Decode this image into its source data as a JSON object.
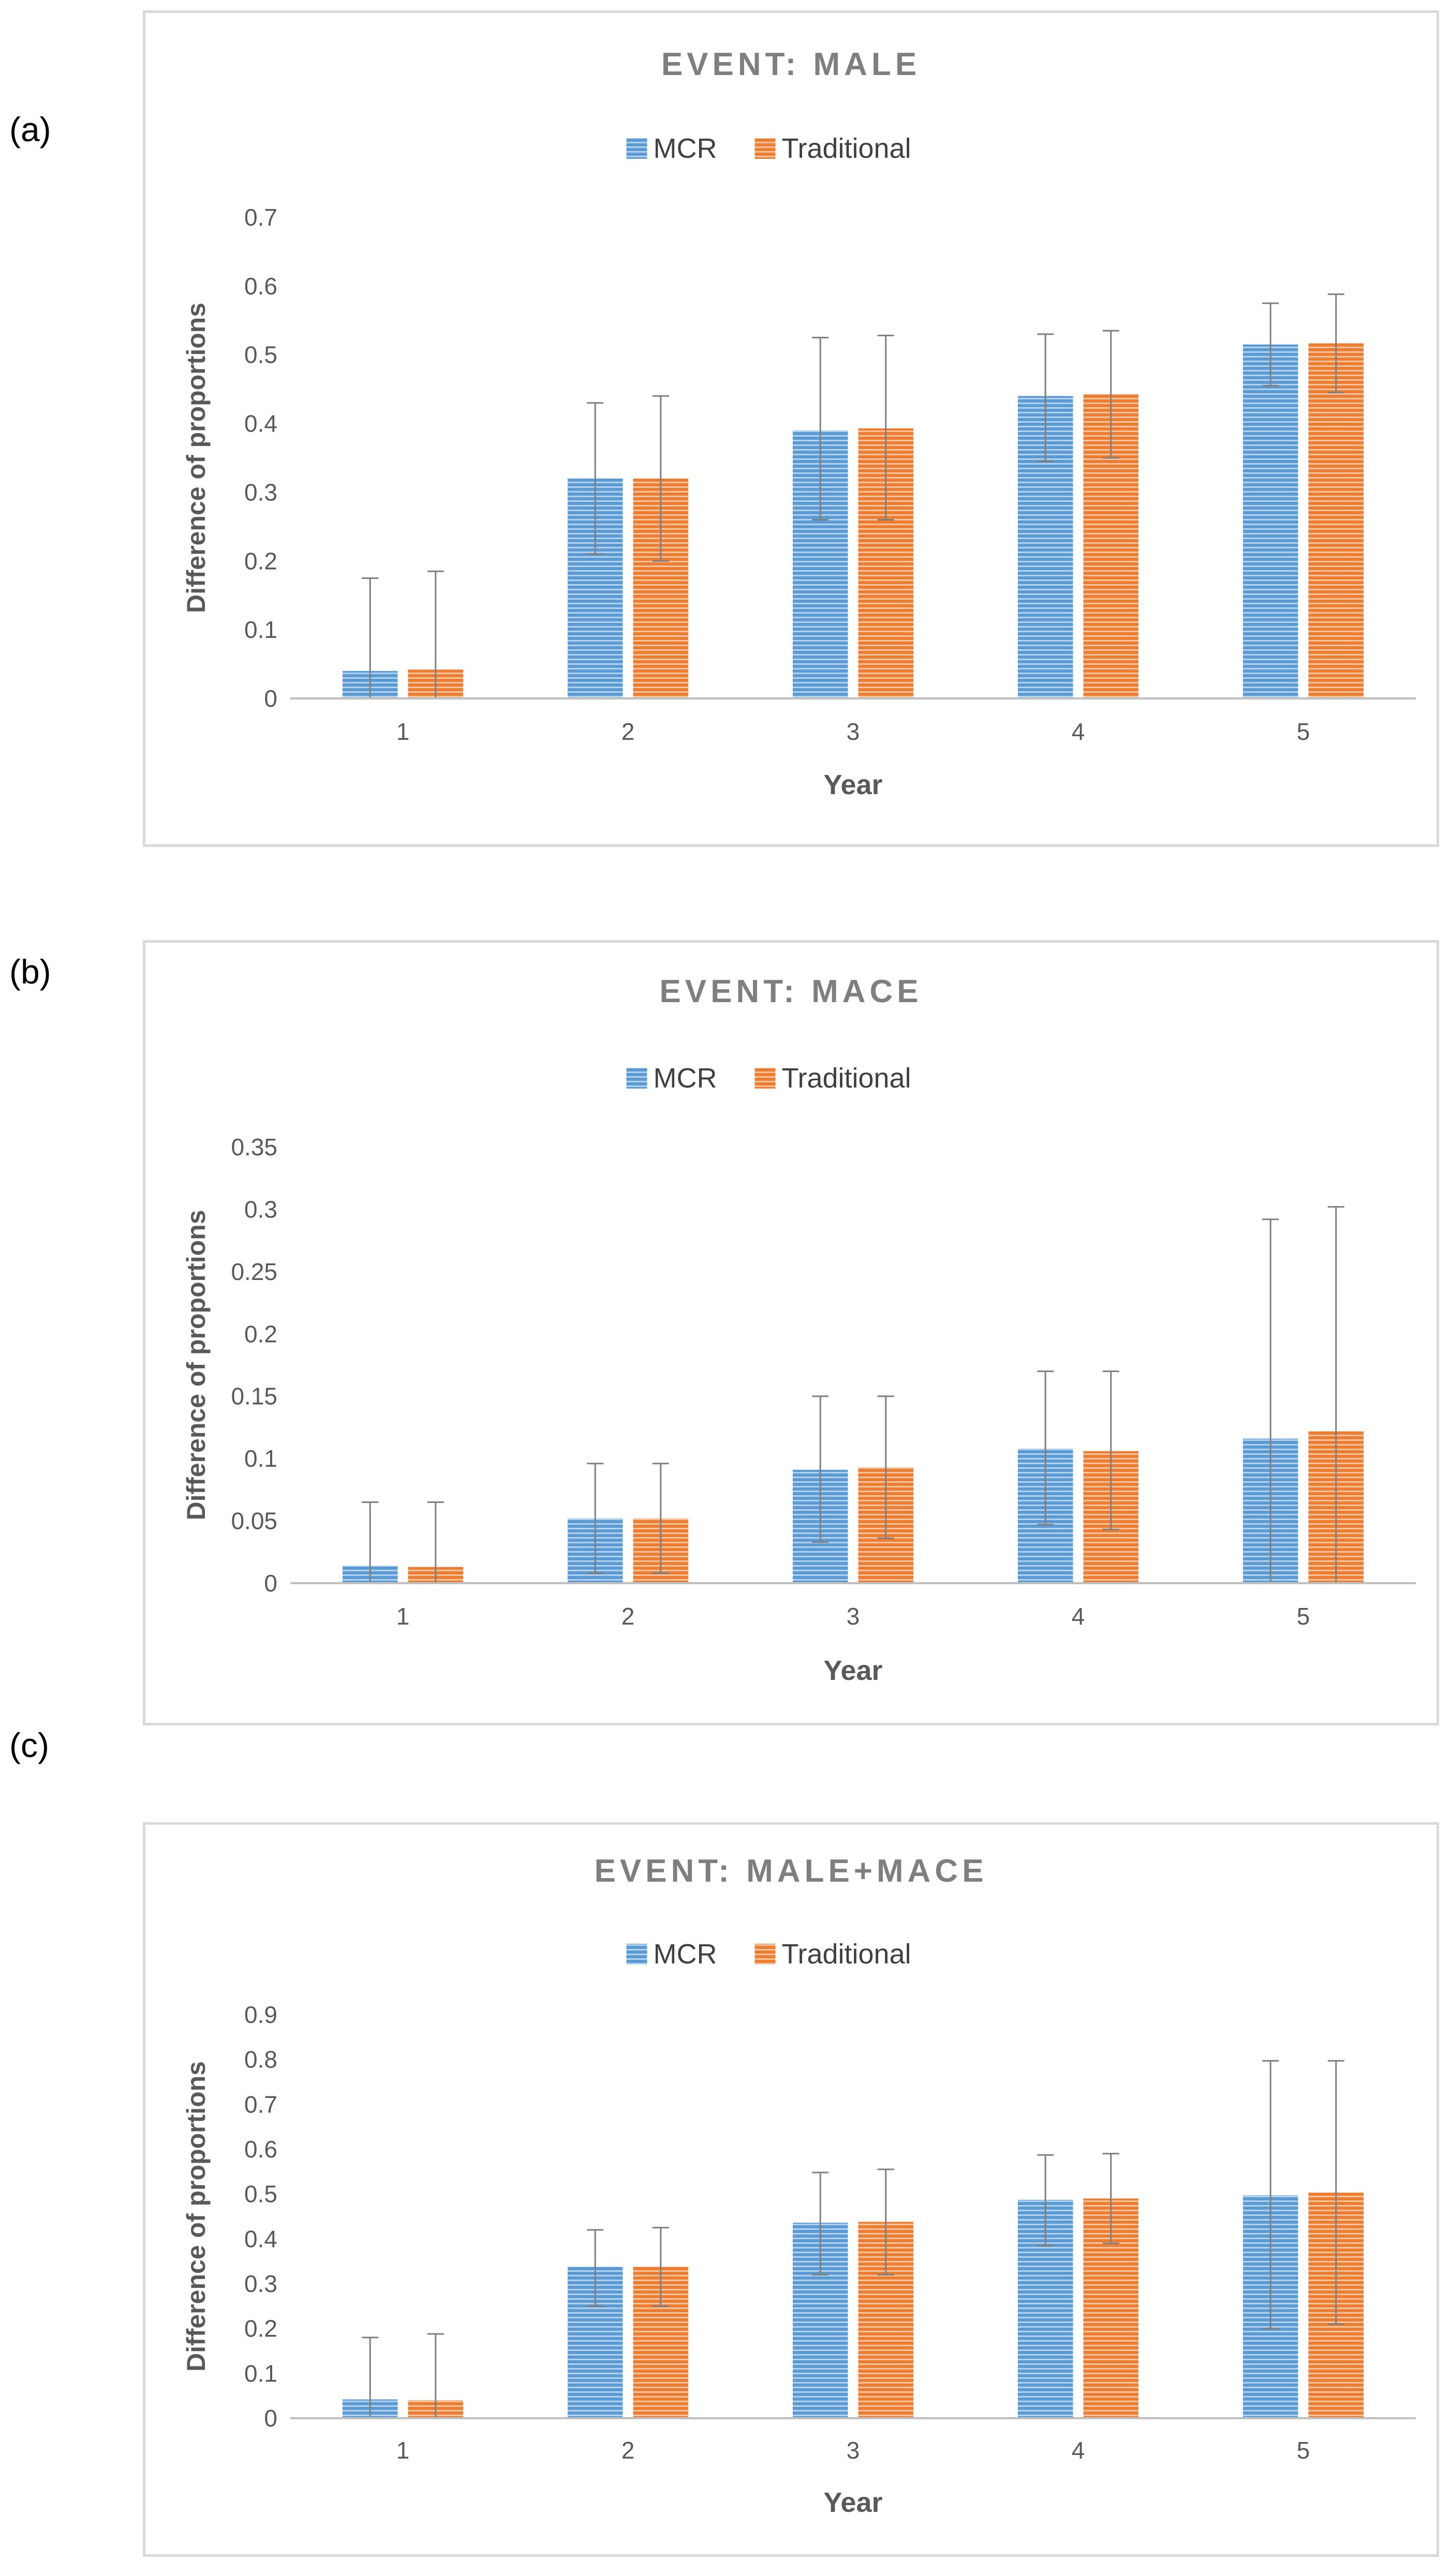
{
  "chart_data": [
    {
      "type": "bar",
      "panel_label": "(a)",
      "title": "EVENT:  MALE",
      "xlabel": "Year",
      "ylabel": "Difference of proportions",
      "categories": [
        "1",
        "2",
        "3",
        "4",
        "5"
      ],
      "ylim": [
        0,
        0.7
      ],
      "yticks": [
        0,
        0.1,
        0.2,
        0.3,
        0.4,
        0.5,
        0.6,
        0.7
      ],
      "ytick_labels": [
        "0",
        "0.1",
        "0.2",
        "0.3",
        "0.4",
        "0.5",
        "0.6",
        "0.7"
      ],
      "legend_position": "top-center",
      "grid": false,
      "series": [
        {
          "name": "MCR",
          "color": "#5b9bd5",
          "values": [
            0.04,
            0.32,
            0.39,
            0.44,
            0.515
          ],
          "err_low": [
            0,
            0.21,
            0.26,
            0.345,
            0.455
          ],
          "err_high": [
            0.175,
            0.43,
            0.525,
            0.53,
            0.575
          ]
        },
        {
          "name": "Traditional",
          "color": "#ed7d31",
          "values": [
            0.042,
            0.32,
            0.393,
            0.443,
            0.517
          ],
          "err_low": [
            0,
            0.2,
            0.26,
            0.35,
            0.445
          ],
          "err_high": [
            0.185,
            0.44,
            0.528,
            0.535,
            0.588
          ]
        }
      ]
    },
    {
      "type": "bar",
      "panel_label": "(b)",
      "title": "EVENT:  MACE",
      "xlabel": "Year",
      "ylabel": "Difference of proportions",
      "categories": [
        "1",
        "2",
        "3",
        "4",
        "5"
      ],
      "ylim": [
        0,
        0.35
      ],
      "yticks": [
        0,
        0.05,
        0.1,
        0.15,
        0.2,
        0.25,
        0.3,
        0.35
      ],
      "ytick_labels": [
        "0",
        "0.05",
        "0.1",
        "0.15",
        "0.2",
        "0.25",
        "0.3",
        "0.35"
      ],
      "legend_position": "top-center",
      "grid": false,
      "series": [
        {
          "name": "MCR",
          "color": "#5b9bd5",
          "values": [
            0.014,
            0.052,
            0.091,
            0.108,
            0.116
          ],
          "err_low": [
            0,
            0.008,
            0.033,
            0.047,
            0
          ],
          "err_high": [
            0.065,
            0.096,
            0.15,
            0.17,
            0.292
          ]
        },
        {
          "name": "Traditional",
          "color": "#ed7d31",
          "values": [
            0.013,
            0.052,
            0.093,
            0.106,
            0.122
          ],
          "err_low": [
            0,
            0.008,
            0.036,
            0.043,
            0
          ],
          "err_high": [
            0.065,
            0.096,
            0.15,
            0.17,
            0.302
          ]
        }
      ]
    },
    {
      "type": "bar",
      "panel_label": "(c)",
      "title": "EVENT:  MALE+MACE",
      "xlabel": "Year",
      "ylabel": "Difference of proportions",
      "categories": [
        "1",
        "2",
        "3",
        "4",
        "5"
      ],
      "ylim": [
        0,
        0.9
      ],
      "yticks": [
        0,
        0.1,
        0.2,
        0.3,
        0.4,
        0.5,
        0.6,
        0.7,
        0.8,
        0.9
      ],
      "ytick_labels": [
        "0",
        "0.1",
        "0.2",
        "0.3",
        "0.4",
        "0.5",
        "0.6",
        "0.7",
        "0.8",
        "0.9"
      ],
      "legend_position": "top-center",
      "grid": false,
      "series": [
        {
          "name": "MCR",
          "color": "#5b9bd5",
          "values": [
            0.042,
            0.338,
            0.436,
            0.487,
            0.497
          ],
          "err_low": [
            0,
            0.25,
            0.32,
            0.385,
            0.2
          ],
          "err_high": [
            0.18,
            0.42,
            0.548,
            0.587,
            0.797
          ]
        },
        {
          "name": "Traditional",
          "color": "#ed7d31",
          "values": [
            0.04,
            0.338,
            0.438,
            0.49,
            0.503
          ],
          "err_low": [
            0,
            0.25,
            0.32,
            0.39,
            0.21
          ],
          "err_high": [
            0.188,
            0.425,
            0.555,
            0.59,
            0.797
          ]
        }
      ]
    }
  ]
}
